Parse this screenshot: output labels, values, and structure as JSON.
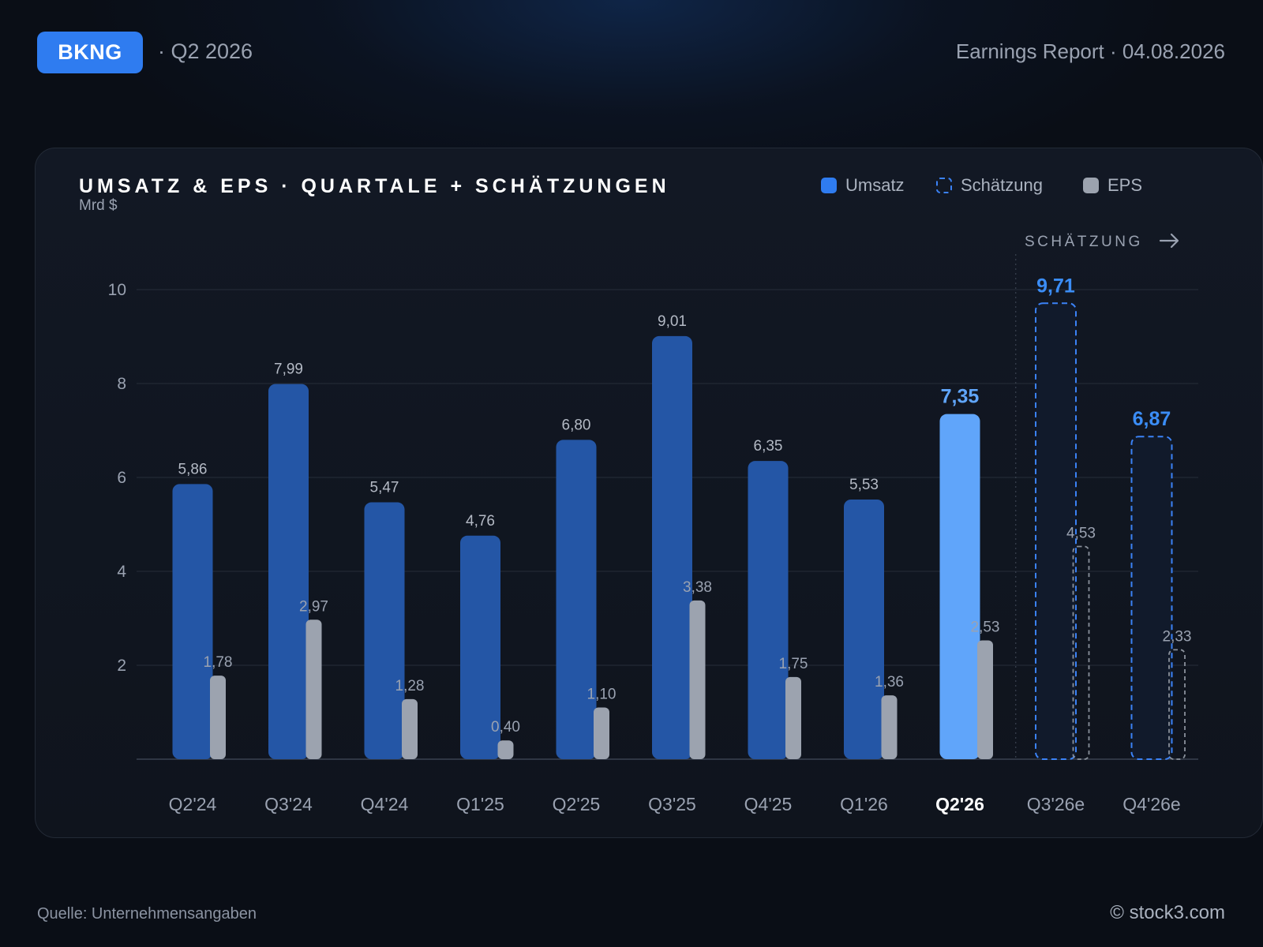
{
  "header": {
    "ticker": "BKNG",
    "period": "· Q2 2026",
    "report": "Earnings Report · 04.08.2026"
  },
  "legend": {
    "revenue": "Umsatz",
    "estimate": "Schätzung",
    "eps": "EPS"
  },
  "footer": {
    "source": "Quelle: Unternehmensangaben",
    "brand": "© stock3.com"
  },
  "colors": {
    "revenue": "#2456a6",
    "current": "#60a5fa",
    "estimate_stroke": "#3b82f6",
    "eps": "#9ca3af",
    "accent_label": "#3b8df6"
  },
  "chart_data": {
    "type": "bar",
    "title": "UMSATZ & EPS · QUARTALE + SCHÄTZUNGEN",
    "ylabel": "Mrd $",
    "ylim": [
      0,
      10
    ],
    "yticks": [
      2,
      4,
      6,
      8,
      10
    ],
    "estimate_marker": "SCHÄTZUNG",
    "categories": [
      "Q2'24",
      "Q3'24",
      "Q4'24",
      "Q1'25",
      "Q2'25",
      "Q3'25",
      "Q4'25",
      "Q1'26",
      "Q2'26",
      "Q3'26e",
      "Q4'26e"
    ],
    "current_index": 8,
    "estimate_from_index": 9,
    "series": [
      {
        "name": "Umsatz",
        "values": [
          5.86,
          7.99,
          5.47,
          4.76,
          6.8,
          9.01,
          6.35,
          5.53,
          7.35,
          9.71,
          6.87
        ],
        "labels": [
          "5,86",
          "7,99",
          "5,47",
          "4,76",
          "6,80",
          "9,01",
          "6,35",
          "5,53",
          "7,35",
          "9,71",
          "6,87"
        ]
      },
      {
        "name": "EPS",
        "values": [
          1.78,
          2.97,
          1.28,
          0.4,
          1.1,
          3.38,
          1.75,
          1.36,
          2.53,
          4.53,
          2.33
        ],
        "labels": [
          "1,78",
          "2,97",
          "1,28",
          "0,40",
          "1,10",
          "3,38",
          "1,75",
          "1,36",
          "2,53",
          "4,53",
          "2,33"
        ]
      }
    ],
    "grid": true,
    "legend_position": "top-right"
  }
}
